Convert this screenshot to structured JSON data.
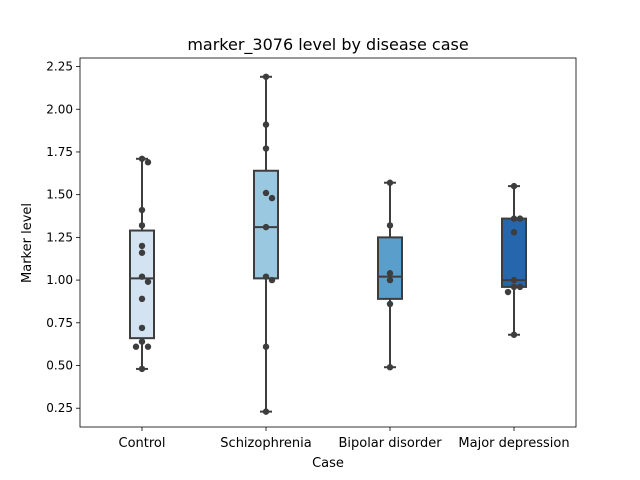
{
  "chart_data": {
    "type": "box",
    "title": "marker_3076 level by disease case",
    "xlabel": "Case",
    "ylabel": "Marker level",
    "ylim": [
      0.14,
      2.3
    ],
    "yticks": [
      0.25,
      0.5,
      0.75,
      1.0,
      1.25,
      1.5,
      1.75,
      2.0,
      2.25
    ],
    "ytick_labels": [
      "0.25",
      "0.50",
      "0.75",
      "1.00",
      "1.25",
      "1.50",
      "1.75",
      "2.00",
      "2.25"
    ],
    "grid": false,
    "legend": false,
    "categories": [
      "Control",
      "Schizophrenia",
      "Bipolar disorder",
      "Major depression"
    ],
    "colors": [
      "#d3e3f2",
      "#9ac8e0",
      "#5a9ecb",
      "#2666ad"
    ],
    "box_stats": [
      {
        "whisker_low": 0.48,
        "q1": 0.66,
        "median": 1.01,
        "q3": 1.29,
        "whisker_high": 1.71
      },
      {
        "whisker_low": 0.23,
        "q1": 1.01,
        "median": 1.31,
        "q3": 1.64,
        "whisker_high": 2.19
      },
      {
        "whisker_low": 0.49,
        "q1": 0.89,
        "median": 1.02,
        "q3": 1.25,
        "whisker_high": 1.57
      },
      {
        "whisker_low": 0.68,
        "q1": 0.96,
        "median": 1.0,
        "q3": 1.36,
        "whisker_high": 1.55
      }
    ],
    "points": [
      [
        1.71,
        1.69,
        1.41,
        1.32,
        1.2,
        1.16,
        1.02,
        0.99,
        0.89,
        0.72,
        0.64,
        0.61,
        0.61,
        0.48
      ],
      [
        2.19,
        1.91,
        1.77,
        1.51,
        1.48,
        1.31,
        1.02,
        1.0,
        0.61,
        0.23
      ],
      [
        1.57,
        1.32,
        1.04,
        1.0,
        0.86,
        0.49
      ],
      [
        1.55,
        1.36,
        1.36,
        1.28,
        1.0,
        0.96,
        0.96,
        0.93,
        0.68
      ]
    ]
  }
}
